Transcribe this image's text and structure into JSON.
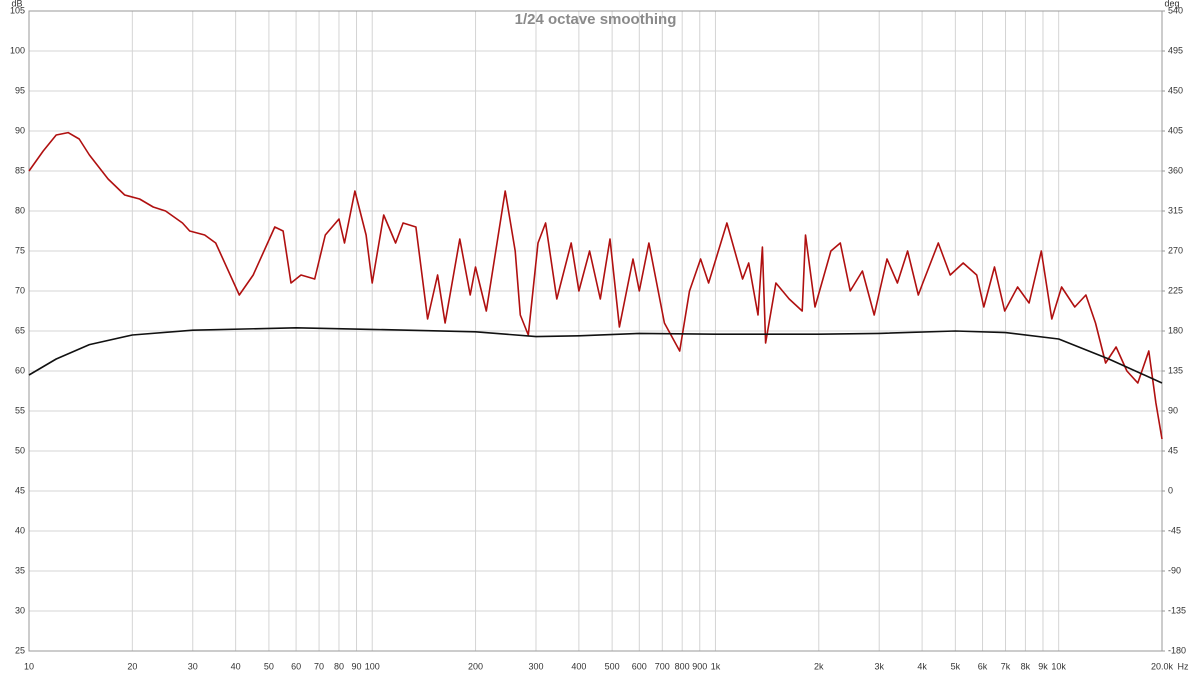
{
  "chart_data": {
    "type": "line",
    "title": "1/24 octave smoothing",
    "y_unit": "dB",
    "y2_unit": "deg",
    "x_unit": "Hz",
    "log_x": true,
    "grid": true,
    "xlim": [
      10,
      20000
    ],
    "ylim": [
      25,
      105
    ],
    "y2lim": [
      -180,
      540
    ],
    "xticks": [
      10,
      20,
      30,
      40,
      50,
      60,
      70,
      80,
      90,
      100,
      200,
      300,
      400,
      500,
      600,
      700,
      800,
      900,
      {
        "value": 1000,
        "label": "1k"
      },
      {
        "value": 2000,
        "label": "2k"
      },
      {
        "value": 3000,
        "label": "3k"
      },
      {
        "value": 4000,
        "label": "4k"
      },
      {
        "value": 5000,
        "label": "5k"
      },
      {
        "value": 6000,
        "label": "6k"
      },
      {
        "value": 7000,
        "label": "7k"
      },
      {
        "value": 8000,
        "label": "8k"
      },
      {
        "value": 9000,
        "label": "9k"
      },
      {
        "value": 10000,
        "label": "10k"
      },
      {
        "value": 20000,
        "label": "20.0k"
      }
    ],
    "yticks": [
      25,
      30,
      35,
      40,
      45,
      50,
      55,
      60,
      65,
      70,
      75,
      80,
      85,
      90,
      95,
      100,
      105
    ],
    "y2ticks": [
      -180,
      -135,
      -90,
      -45,
      0,
      45,
      90,
      135,
      180,
      225,
      270,
      315,
      360,
      405,
      450,
      495,
      540
    ],
    "series": [
      {
        "color": "#b01010",
        "x": [
          10,
          11,
          12,
          13,
          14,
          15,
          17,
          19,
          21,
          23,
          25,
          28,
          29.4,
          32.5,
          35,
          41,
          45,
          52,
          55,
          58,
          62,
          68,
          73,
          80,
          83,
          89,
          96,
          100,
          108,
          117,
          123,
          134,
          145,
          155,
          163,
          180,
          193,
          200,
          215,
          244,
          261,
          270,
          285,
          304,
          320,
          345,
          380,
          400,
          430,
          462,
          493,
          525,
          575,
          600,
          640,
          710,
          787,
          840,
          905,
          955,
          1080,
          1200,
          1250,
          1330,
          1370,
          1400,
          1500,
          1640,
          1790,
          1830,
          1950,
          2170,
          2310,
          2470,
          2680,
          2900,
          3160,
          3390,
          3630,
          3900,
          4020,
          4460,
          4830,
          5270,
          5770,
          6050,
          6500,
          6960,
          7590,
          8200,
          8900,
          9550,
          10200,
          11140,
          12000,
          12800,
          13700,
          14700,
          15800,
          17000,
          18300,
          19200,
          20000
        ],
        "values": [
          85,
          87.5,
          89.5,
          89.8,
          89,
          87,
          84,
          82,
          81.5,
          80.5,
          80,
          78.5,
          77.5,
          77,
          76,
          69.5,
          72,
          78,
          77.5,
          71,
          72,
          71.5,
          77,
          79,
          76,
          82.5,
          77,
          71,
          79.5,
          76,
          78.5,
          78,
          66.5,
          72,
          66,
          76.5,
          69.5,
          73,
          67.5,
          82.5,
          75,
          67,
          64.5,
          76,
          78.5,
          69,
          76,
          70,
          75,
          69,
          76.5,
          65.5,
          74,
          70,
          76,
          66,
          62.5,
          70,
          74,
          71,
          78.5,
          71.5,
          73.5,
          67,
          75.5,
          63.5,
          71,
          69,
          67.5,
          77,
          68,
          75,
          76,
          70,
          72.5,
          67,
          74,
          71,
          75,
          69.5,
          71,
          76,
          72,
          73.5,
          72,
          68,
          73,
          67.5,
          70.5,
          68.5,
          75,
          66.5,
          70.5,
          68,
          69.5,
          66,
          61,
          63,
          60,
          58.5,
          62.5,
          56,
          51.5
        ]
      },
      {
        "color": "#111111",
        "x": [
          10,
          12,
          15,
          20,
          30,
          60,
          100,
          200,
          300,
          400,
          600,
          1000,
          2000,
          3000,
          5000,
          7000,
          10000,
          14000,
          20000
        ],
        "values": [
          59.5,
          61.5,
          63.3,
          64.5,
          65.1,
          65.4,
          65.2,
          64.9,
          64.3,
          64.4,
          64.7,
          64.6,
          64.6,
          64.7,
          65,
          64.8,
          64,
          61.5,
          58.5
        ]
      }
    ]
  }
}
